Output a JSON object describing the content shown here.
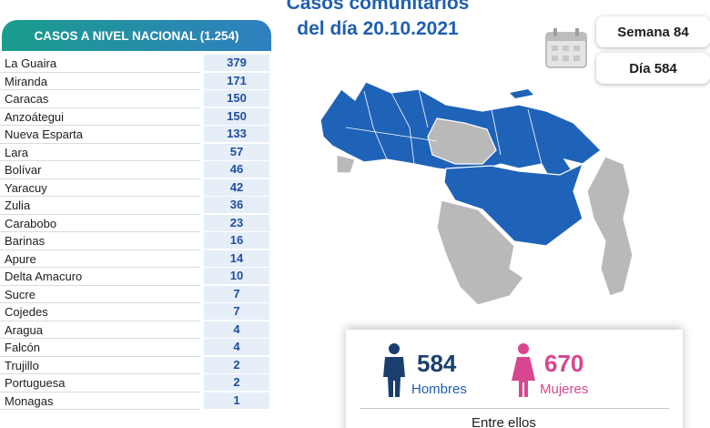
{
  "title": [
    "Casos comunitarios",
    "del día 20.10.2021"
  ],
  "table": {
    "header": "CASOS A NIVEL NACIONAL (1.254)",
    "rows": [
      [
        "La Guaira",
        379
      ],
      [
        "Miranda",
        171
      ],
      [
        "Caracas",
        150
      ],
      [
        "Anzoátegui",
        150
      ],
      [
        "Nueva Esparta",
        133
      ],
      [
        "Lara",
        57
      ],
      [
        "Bolívar",
        46
      ],
      [
        "Yaracuy",
        42
      ],
      [
        "Zulia",
        36
      ],
      [
        "Carabobo",
        23
      ],
      [
        "Barinas",
        16
      ],
      [
        "Apure",
        14
      ],
      [
        "Delta Amacuro",
        10
      ],
      [
        "Sucre",
        7
      ],
      [
        "Cojedes",
        7
      ],
      [
        "Aragua",
        4
      ],
      [
        "Falcón",
        4
      ],
      [
        "Trujillo",
        2
      ],
      [
        "Portuguesa",
        2
      ],
      [
        "Monagas",
        1
      ]
    ]
  },
  "week": "Semana 84",
  "day": "Día 584",
  "men": {
    "count": 584,
    "label": "Hombres"
  },
  "women": {
    "count": 670,
    "label": "Mujeres"
  },
  "footer": "Entre ellos"
}
